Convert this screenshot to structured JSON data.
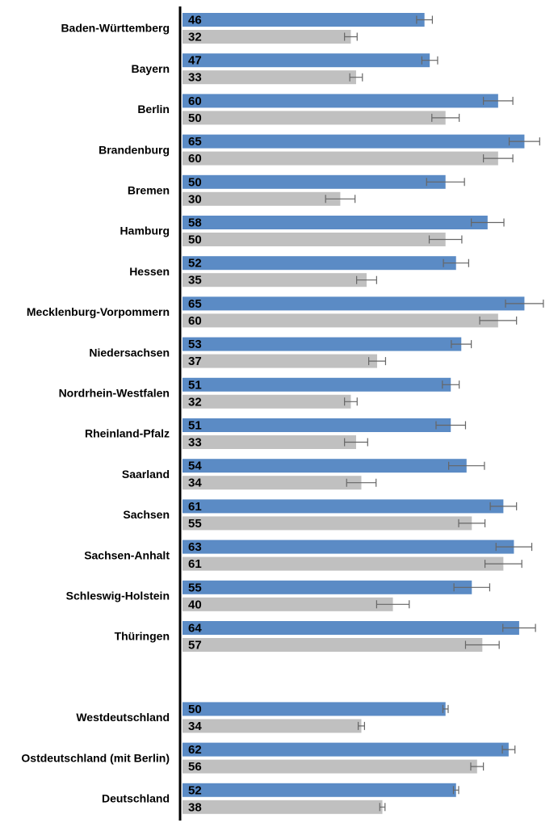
{
  "chart_data": {
    "type": "bar",
    "orientation": "horizontal",
    "categories": [
      "Baden-Württemberg",
      "Bayern",
      "Berlin",
      "Brandenburg",
      "Bremen",
      "Hamburg",
      "Hessen",
      "Mecklenburg-Vorpommern",
      "Niedersachsen",
      "Nordrhein-Westfalen",
      "Rheinland-Pfalz",
      "Saarland",
      "Sachsen",
      "Sachsen-Anhalt",
      "Schleswig-Holstein",
      "Thüringen",
      null,
      "Westdeutschland",
      "Ostdeutschland (mit Berlin)",
      "Deutschland"
    ],
    "series": [
      {
        "color": "#5b8bc5",
        "values": [
          46,
          47,
          60,
          65,
          50,
          58,
          52,
          65,
          53,
          51,
          51,
          54,
          61,
          63,
          55,
          64,
          null,
          50,
          62,
          52
        ],
        "errors": [
          1.5,
          1.5,
          2.8,
          2.9,
          3.6,
          3.1,
          2.4,
          3.6,
          1.9,
          1.6,
          2.8,
          3.4,
          2.5,
          3.4,
          3.4,
          3.1,
          null,
          0.5,
          1.2,
          0.5
        ]
      },
      {
        "color": "#c0c0c0",
        "values": [
          32,
          33,
          50,
          60,
          30,
          50,
          35,
          60,
          37,
          32,
          33,
          34,
          55,
          61,
          40,
          57,
          null,
          34,
          56,
          38
        ],
        "errors": [
          1.2,
          1.2,
          2.6,
          2.8,
          2.8,
          3.1,
          1.9,
          3.5,
          1.6,
          1.2,
          2.2,
          2.8,
          2.5,
          3.5,
          3.1,
          3.2,
          null,
          0.6,
          1.2,
          0.5
        ]
      }
    ],
    "xlim": [
      0,
      70
    ]
  }
}
